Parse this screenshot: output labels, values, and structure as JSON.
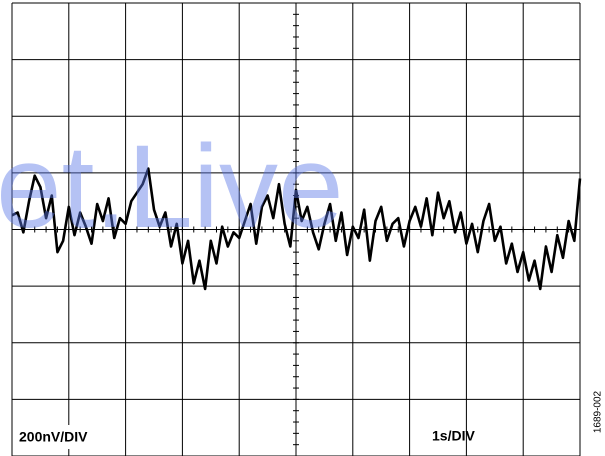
{
  "chart_data": {
    "type": "line",
    "watermark": "et.Live",
    "y_scale_label": "200nV/DIV",
    "x_scale_label": "1s/DIV",
    "figure_id": "1689-002",
    "xlim": [
      0,
      10
    ],
    "xticks": [
      0,
      1,
      2,
      3,
      4,
      5,
      6,
      7,
      8,
      9,
      10
    ],
    "ylim": [
      -800,
      800
    ],
    "yticks": [
      -800,
      -600,
      -400,
      -200,
      0,
      200,
      400,
      600,
      800
    ],
    "grid": true,
    "series": [
      {
        "color": "#000000",
        "x": [
          0,
          0.1,
          0.2,
          0.3,
          0.4,
          0.5,
          0.6,
          0.7,
          0.8,
          0.9,
          1,
          1.1,
          1.2,
          1.3,
          1.4,
          1.5,
          1.6,
          1.7,
          1.8,
          1.9,
          2,
          2.1,
          2.2,
          2.3,
          2.4,
          2.5,
          2.6,
          2.7,
          2.8,
          2.9,
          3,
          3.1,
          3.2,
          3.3,
          3.4,
          3.5,
          3.6,
          3.7,
          3.8,
          3.9,
          4,
          4.1,
          4.2,
          4.3,
          4.4,
          4.5,
          4.6,
          4.7,
          4.8,
          4.9,
          5,
          5.1,
          5.2,
          5.3,
          5.4,
          5.5,
          5.6,
          5.7,
          5.8,
          5.9,
          6,
          6.1,
          6.2,
          6.3,
          6.4,
          6.5,
          6.6,
          6.7,
          6.8,
          6.9,
          7,
          7.1,
          7.2,
          7.3,
          7.4,
          7.5,
          7.6,
          7.7,
          7.8,
          7.9,
          8,
          8.1,
          8.2,
          8.3,
          8.4,
          8.5,
          8.6,
          8.7,
          8.8,
          8.9,
          9,
          9.1,
          9.2,
          9.3,
          9.4,
          9.5,
          9.6,
          9.7,
          9.8,
          9.9,
          10
        ],
        "values": [
          50,
          60,
          -10,
          100,
          190,
          150,
          40,
          120,
          -80,
          -40,
          80,
          -20,
          60,
          10,
          -50,
          90,
          30,
          110,
          -30,
          40,
          20,
          100,
          130,
          160,
          215,
          70,
          10,
          60,
          -60,
          20,
          -120,
          -40,
          -190,
          -110,
          -210,
          -40,
          -120,
          10,
          -60,
          -10,
          -30,
          30,
          90,
          -50,
          80,
          120,
          40,
          160,
          20,
          -60,
          140,
          30,
          80,
          -10,
          -70,
          20,
          90,
          -40,
          60,
          -90,
          10,
          -30,
          70,
          -110,
          30,
          80,
          -40,
          20,
          40,
          -60,
          30,
          80,
          10,
          110,
          -20,
          130,
          40,
          100,
          -10,
          60,
          -50,
          20,
          -80,
          30,
          90,
          -40,
          10,
          -120,
          -50,
          -150,
          -80,
          -180,
          -110,
          -210,
          -60,
          -150,
          -20,
          -100,
          30,
          -40,
          180
        ]
      }
    ]
  }
}
